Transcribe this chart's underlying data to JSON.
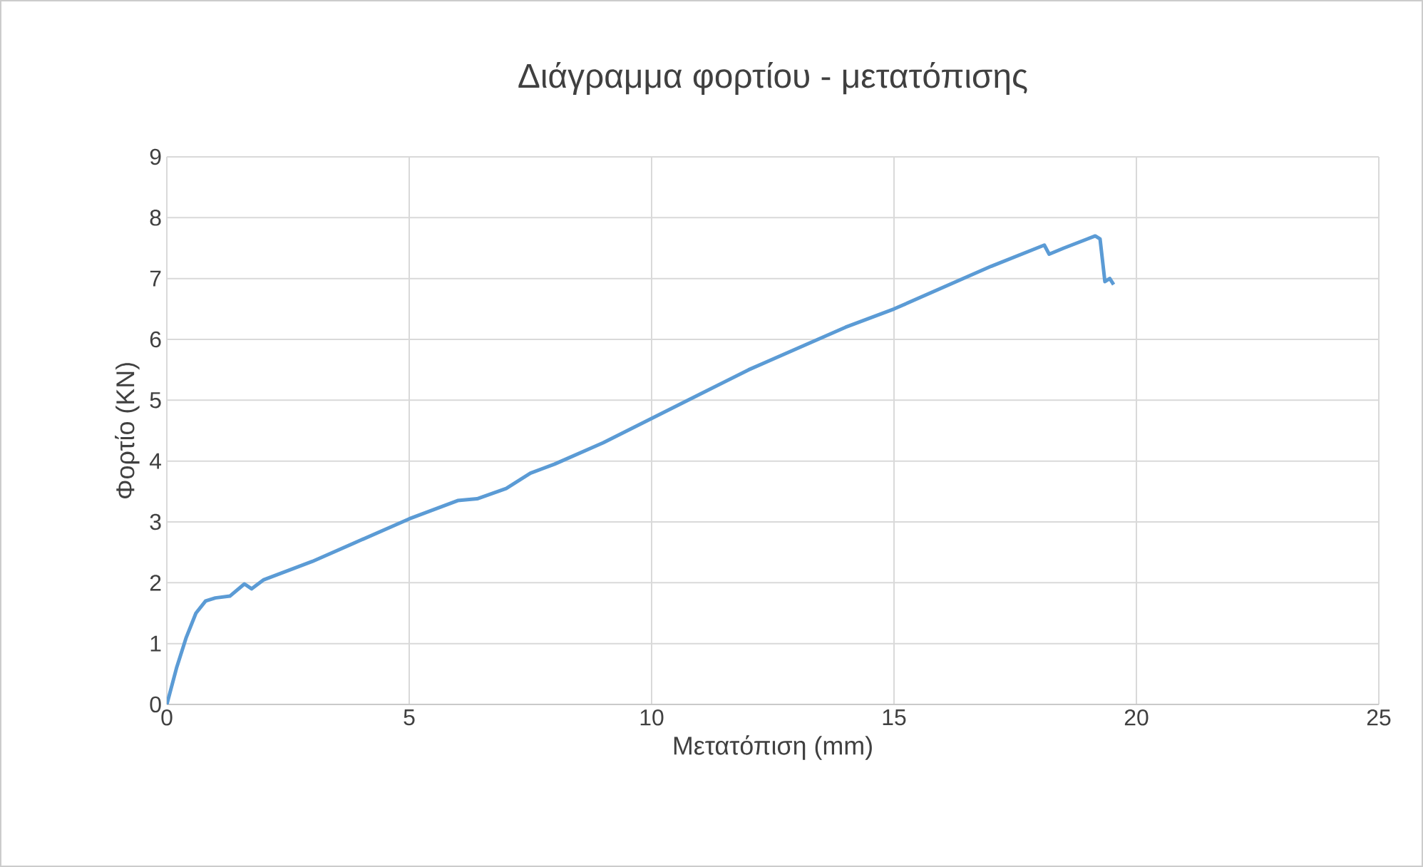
{
  "chart_data": {
    "type": "line",
    "title": "Διάγραμμα φορτίου - μετατόπισης",
    "xlabel": "Μετατόπιση (mm)",
    "ylabel": "Φορτίο (KN)",
    "xlim": [
      0,
      25
    ],
    "xticks": [
      0,
      5,
      10,
      15,
      20,
      25
    ],
    "ylim": [
      0,
      9
    ],
    "yticks": [
      0,
      1,
      2,
      3,
      4,
      5,
      6,
      7,
      8,
      9
    ],
    "grid": true,
    "marker": "none",
    "line_style": "solid",
    "series": [
      {
        "color": "#5b9bd5",
        "x": [
          0,
          0.2,
          0.4,
          0.6,
          0.8,
          1.0,
          1.3,
          1.6,
          1.75,
          2.0,
          3,
          4,
          5,
          5.5,
          6,
          6.4,
          7,
          7.5,
          8,
          9,
          10,
          11,
          12,
          13,
          14,
          15,
          16,
          17,
          18.1,
          18.2,
          18.5,
          19.15,
          19.25,
          19.35,
          19.45,
          19.53
        ],
        "values": [
          0,
          0.6,
          1.1,
          1.5,
          1.7,
          1.75,
          1.78,
          1.98,
          1.9,
          2.05,
          2.35,
          2.7,
          3.05,
          3.2,
          3.35,
          3.38,
          3.55,
          3.8,
          3.95,
          4.3,
          4.7,
          5.1,
          5.5,
          5.85,
          6.2,
          6.5,
          6.85,
          7.2,
          7.55,
          7.4,
          7.5,
          7.7,
          7.65,
          6.95,
          7.0,
          6.9
        ]
      }
    ]
  }
}
